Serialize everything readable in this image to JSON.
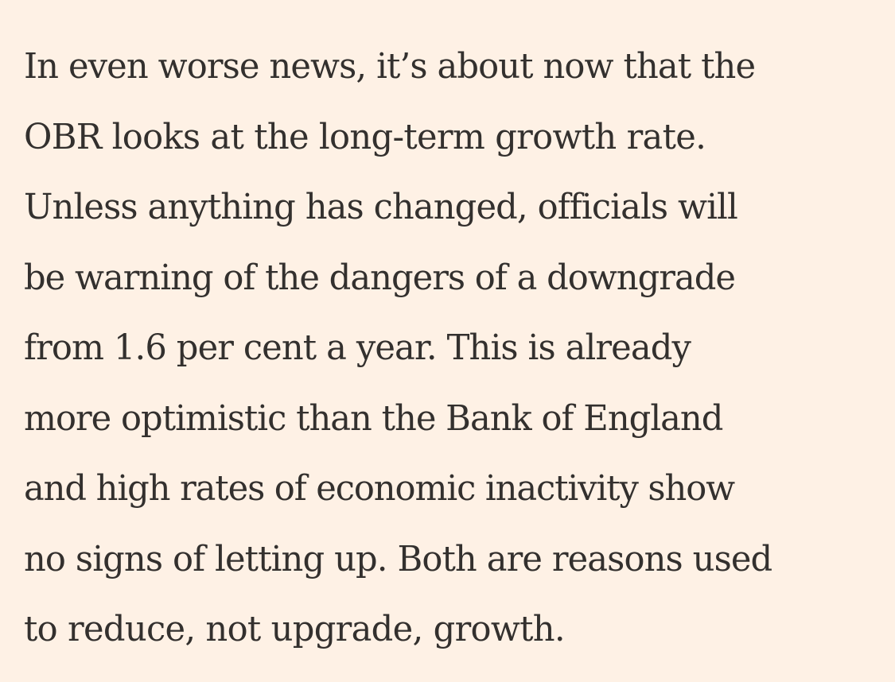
{
  "article": {
    "paragraph_lines": [
      "In even worse news, it’s about now that the",
      "OBR looks at the long-term growth rate.",
      "Unless anything has changed, officials will",
      "be warning of the dangers of a downgrade",
      "from 1.6 per cent a year. This is already",
      "more optimistic than the Bank of England",
      "and high rates of economic inactivity show",
      "no signs of letting up. Both are reasons used",
      "to reduce, not upgrade, growth."
    ]
  },
  "colors": {
    "background": "#fef1e5",
    "text": "#33302e"
  }
}
